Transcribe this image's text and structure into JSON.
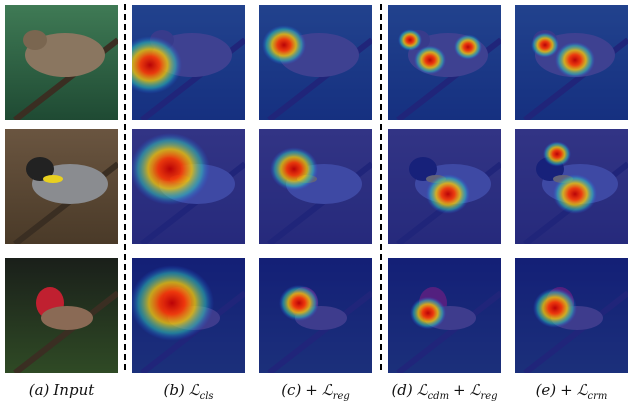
{
  "captions": [
    {
      "parts": [
        {
          "text": "(a)"
        },
        {
          "text": "Input"
        }
      ]
    },
    {
      "parts": [
        {
          "text": "(b)"
        },
        {
          "text": "ℒ",
          "sub": "cls"
        }
      ]
    },
    {
      "parts": [
        {
          "text": "(c)"
        },
        {
          "text": "+"
        },
        {
          "text": "ℒ",
          "sub": "reg"
        }
      ]
    },
    {
      "parts": [
        {
          "text": "(d)"
        },
        {
          "text": "ℒ",
          "sub": "cdm"
        },
        {
          "text": "+"
        },
        {
          "text": "ℒ",
          "sub": "reg"
        }
      ]
    },
    {
      "parts": [
        {
          "text": "(e)"
        },
        {
          "text": "+"
        },
        {
          "text": "ℒ",
          "sub": "crm"
        }
      ]
    }
  ]
}
